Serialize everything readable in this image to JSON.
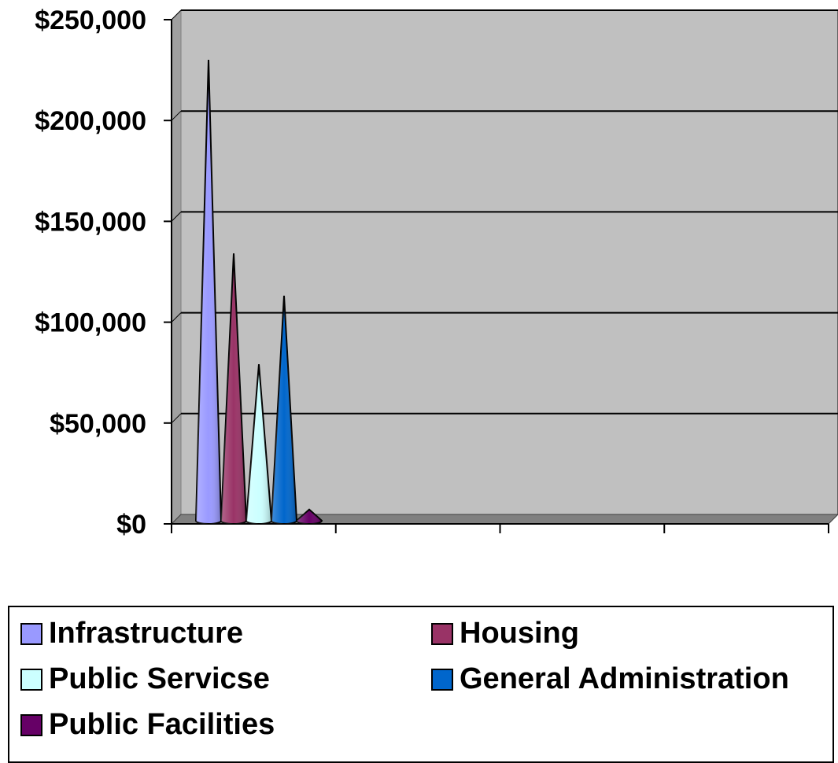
{
  "chart_data": {
    "type": "bar",
    "title": "",
    "xlabel": "",
    "ylabel": "",
    "ylim": [
      0,
      250000
    ],
    "yticks": [
      "$0",
      "$50,000",
      "$100,000",
      "$150,000",
      "$200,000",
      "$250,000"
    ],
    "ytick_values": [
      0,
      50000,
      100000,
      150000,
      200000,
      250000
    ],
    "categories": [
      ""
    ],
    "category_slots": 4,
    "grid": true,
    "legend_position": "bottom",
    "bar_shape": "3d-cone",
    "series": [
      {
        "name": "Infrastructure",
        "values": [
          227000
        ],
        "color": "#9999FF"
      },
      {
        "name": "Housing",
        "values": [
          131000
        ],
        "color": "#993366"
      },
      {
        "name": "Public Servicse",
        "values": [
          76000
        ],
        "color": "#CCFFFF"
      },
      {
        "name": "General Administration",
        "values": [
          110000
        ],
        "color": "#0066CC"
      },
      {
        "name": "Public Facilities",
        "values": [
          4000
        ],
        "color": "#660066"
      }
    ]
  },
  "colors": {
    "plot_wall": "#C0C0C0",
    "floor": "#808080",
    "gridline": "#000000"
  }
}
